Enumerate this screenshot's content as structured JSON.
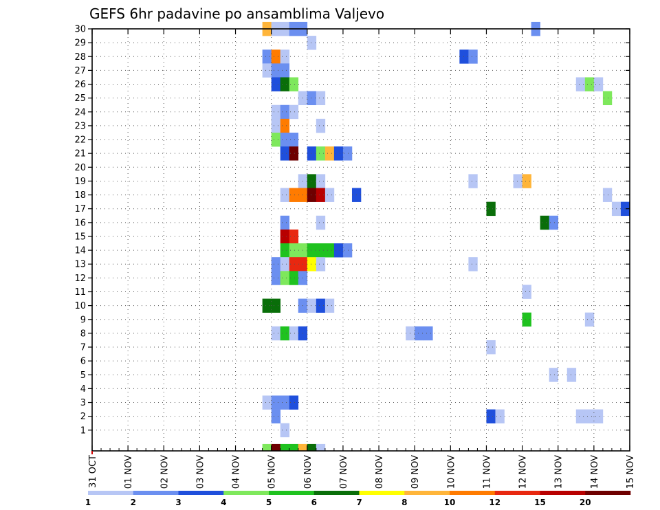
{
  "chart_data": {
    "type": "heatmap",
    "title": "GEFS 6hr padavine po ansamblima Valjevo",
    "xlabel": "",
    "ylabel": "",
    "x_tick_labels": [
      "31 OCT",
      "01 NOV",
      "02 NOV",
      "03 NOV",
      "04 NOV",
      "05 NOV",
      "06 NOV",
      "07 NOV",
      "08 NOV",
      "09 NOV",
      "10 NOV",
      "11 NOV",
      "12 NOV",
      "13 NOV",
      "14 NOV",
      "15 NOV"
    ],
    "y_tick_labels": [
      "1",
      "2",
      "3",
      "4",
      "5",
      "6",
      "7",
      "8",
      "9",
      "10",
      "11",
      "12",
      "13",
      "14",
      "15",
      "16",
      "17",
      "18",
      "19",
      "20",
      "21",
      "22",
      "23",
      "24",
      "25",
      "26",
      "27",
      "28",
      "29",
      "30"
    ],
    "grid": true,
    "colorbar": {
      "boundaries": [
        1,
        2,
        3,
        4,
        5,
        6,
        7,
        8,
        10,
        12,
        15,
        20
      ],
      "labels": [
        "1",
        "2",
        "3",
        "4",
        "5",
        "6",
        "7",
        "8",
        "10",
        "12",
        "15",
        "20"
      ],
      "colors": [
        "#b7c6f5",
        "#6b8ff0",
        "#1f4fdc",
        "#7ee85c",
        "#1fc21f",
        "#096e09",
        "#ffff00",
        "#ffb53a",
        "#ff7b00",
        "#e82810",
        "#b80000",
        "#6e0000"
      ]
    },
    "cells_note_units": "x = 6-hour time step index counted from 31 OCT 00UTC (4 steps per day), y = ensemble member, c = colour class index 0-11",
    "cells": [
      {
        "x": 19,
        "y": 30,
        "c": 7
      },
      {
        "x": 20,
        "y": 30,
        "c": 0
      },
      {
        "x": 21,
        "y": 30,
        "c": 0
      },
      {
        "x": 22,
        "y": 30,
        "c": 1
      },
      {
        "x": 23,
        "y": 30,
        "c": 1
      },
      {
        "x": 49,
        "y": 30,
        "c": 1
      },
      {
        "x": 24,
        "y": 29,
        "c": 0
      },
      {
        "x": 19,
        "y": 28,
        "c": 1
      },
      {
        "x": 20,
        "y": 28,
        "c": 8
      },
      {
        "x": 21,
        "y": 28,
        "c": 0
      },
      {
        "x": 41,
        "y": 28,
        "c": 2
      },
      {
        "x": 42,
        "y": 28,
        "c": 1
      },
      {
        "x": 19,
        "y": 27,
        "c": 0
      },
      {
        "x": 20,
        "y": 27,
        "c": 1
      },
      {
        "x": 21,
        "y": 27,
        "c": 1
      },
      {
        "x": 20,
        "y": 26,
        "c": 2
      },
      {
        "x": 21,
        "y": 26,
        "c": 5
      },
      {
        "x": 22,
        "y": 26,
        "c": 3
      },
      {
        "x": 54,
        "y": 26,
        "c": 0
      },
      {
        "x": 55,
        "y": 26,
        "c": 3
      },
      {
        "x": 56,
        "y": 26,
        "c": 0
      },
      {
        "x": 23,
        "y": 25,
        "c": 0
      },
      {
        "x": 24,
        "y": 25,
        "c": 1
      },
      {
        "x": 25,
        "y": 25,
        "c": 0
      },
      {
        "x": 57,
        "y": 25,
        "c": 3
      },
      {
        "x": 20,
        "y": 24,
        "c": 0
      },
      {
        "x": 21,
        "y": 24,
        "c": 1
      },
      {
        "x": 22,
        "y": 24,
        "c": 0
      },
      {
        "x": 20,
        "y": 23,
        "c": 0
      },
      {
        "x": 21,
        "y": 23,
        "c": 8
      },
      {
        "x": 25,
        "y": 23,
        "c": 0
      },
      {
        "x": 20,
        "y": 22,
        "c": 3
      },
      {
        "x": 21,
        "y": 22,
        "c": 1
      },
      {
        "x": 22,
        "y": 22,
        "c": 1
      },
      {
        "x": 21,
        "y": 21,
        "c": 2
      },
      {
        "x": 22,
        "y": 21,
        "c": 11
      },
      {
        "x": 24,
        "y": 21,
        "c": 2
      },
      {
        "x": 25,
        "y": 21,
        "c": 3
      },
      {
        "x": 26,
        "y": 21,
        "c": 7
      },
      {
        "x": 27,
        "y": 21,
        "c": 2
      },
      {
        "x": 28,
        "y": 21,
        "c": 1
      },
      {
        "x": 23,
        "y": 19,
        "c": 0
      },
      {
        "x": 24,
        "y": 19,
        "c": 5
      },
      {
        "x": 25,
        "y": 19,
        "c": 0
      },
      {
        "x": 42,
        "y": 19,
        "c": 0
      },
      {
        "x": 47,
        "y": 19,
        "c": 0
      },
      {
        "x": 48,
        "y": 19,
        "c": 7
      },
      {
        "x": 21,
        "y": 18,
        "c": 0
      },
      {
        "x": 22,
        "y": 18,
        "c": 8
      },
      {
        "x": 23,
        "y": 18,
        "c": 8
      },
      {
        "x": 24,
        "y": 18,
        "c": 11
      },
      {
        "x": 25,
        "y": 18,
        "c": 10
      },
      {
        "x": 26,
        "y": 18,
        "c": 0
      },
      {
        "x": 29,
        "y": 18,
        "c": 2
      },
      {
        "x": 57,
        "y": 18,
        "c": 0
      },
      {
        "x": 44,
        "y": 17,
        "c": 5
      },
      {
        "x": 58,
        "y": 17,
        "c": 0
      },
      {
        "x": 59,
        "y": 17,
        "c": 2
      },
      {
        "x": 21,
        "y": 16,
        "c": 1
      },
      {
        "x": 25,
        "y": 16,
        "c": 0
      },
      {
        "x": 50,
        "y": 16,
        "c": 5
      },
      {
        "x": 51,
        "y": 16,
        "c": 1
      },
      {
        "x": 21,
        "y": 15,
        "c": 10
      },
      {
        "x": 22,
        "y": 15,
        "c": 9
      },
      {
        "x": 21,
        "y": 14,
        "c": 4
      },
      {
        "x": 22,
        "y": 14,
        "c": 3
      },
      {
        "x": 23,
        "y": 14,
        "c": 3
      },
      {
        "x": 24,
        "y": 14,
        "c": 4
      },
      {
        "x": 25,
        "y": 14,
        "c": 4
      },
      {
        "x": 26,
        "y": 14,
        "c": 4
      },
      {
        "x": 27,
        "y": 14,
        "c": 2
      },
      {
        "x": 28,
        "y": 14,
        "c": 1
      },
      {
        "x": 20,
        "y": 13,
        "c": 1
      },
      {
        "x": 21,
        "y": 13,
        "c": 0
      },
      {
        "x": 22,
        "y": 13,
        "c": 9
      },
      {
        "x": 23,
        "y": 13,
        "c": 9
      },
      {
        "x": 24,
        "y": 13,
        "c": 6
      },
      {
        "x": 25,
        "y": 13,
        "c": 0
      },
      {
        "x": 42,
        "y": 13,
        "c": 0
      },
      {
        "x": 20,
        "y": 12,
        "c": 1
      },
      {
        "x": 21,
        "y": 12,
        "c": 3
      },
      {
        "x": 22,
        "y": 12,
        "c": 4
      },
      {
        "x": 23,
        "y": 12,
        "c": 1
      },
      {
        "x": 48,
        "y": 11,
        "c": 0
      },
      {
        "x": 19,
        "y": 10,
        "c": 5
      },
      {
        "x": 20,
        "y": 10,
        "c": 5
      },
      {
        "x": 23,
        "y": 10,
        "c": 1
      },
      {
        "x": 24,
        "y": 10,
        "c": 0
      },
      {
        "x": 25,
        "y": 10,
        "c": 2
      },
      {
        "x": 26,
        "y": 10,
        "c": 0
      },
      {
        "x": 48,
        "y": 9,
        "c": 4
      },
      {
        "x": 55,
        "y": 9,
        "c": 0
      },
      {
        "x": 20,
        "y": 8,
        "c": 0
      },
      {
        "x": 21,
        "y": 8,
        "c": 4
      },
      {
        "x": 22,
        "y": 8,
        "c": 0
      },
      {
        "x": 23,
        "y": 8,
        "c": 2
      },
      {
        "x": 35,
        "y": 8,
        "c": 0
      },
      {
        "x": 36,
        "y": 8,
        "c": 1
      },
      {
        "x": 37,
        "y": 8,
        "c": 1
      },
      {
        "x": 44,
        "y": 7,
        "c": 0
      },
      {
        "x": 51,
        "y": 5,
        "c": 0
      },
      {
        "x": 53,
        "y": 5,
        "c": 0
      },
      {
        "x": 19,
        "y": 3,
        "c": 0
      },
      {
        "x": 20,
        "y": 3,
        "c": 1
      },
      {
        "x": 21,
        "y": 3,
        "c": 1
      },
      {
        "x": 22,
        "y": 3,
        "c": 2
      },
      {
        "x": 20,
        "y": 2,
        "c": 1
      },
      {
        "x": 44,
        "y": 2,
        "c": 2
      },
      {
        "x": 45,
        "y": 2,
        "c": 0
      },
      {
        "x": 54,
        "y": 2,
        "c": 0
      },
      {
        "x": 55,
        "y": 2,
        "c": 0
      },
      {
        "x": 56,
        "y": 2,
        "c": 0
      },
      {
        "x": 21,
        "y": 1,
        "c": 0
      },
      {
        "x": 19,
        "y": 0,
        "c": 3
      },
      {
        "x": 20,
        "y": 0,
        "c": 11
      },
      {
        "x": 21,
        "y": 0,
        "c": 4
      },
      {
        "x": 22,
        "y": 0,
        "c": 4
      },
      {
        "x": 23,
        "y": 0,
        "c": 7
      },
      {
        "x": 24,
        "y": 0,
        "c": 5
      },
      {
        "x": 25,
        "y": 0,
        "c": 0
      }
    ]
  }
}
